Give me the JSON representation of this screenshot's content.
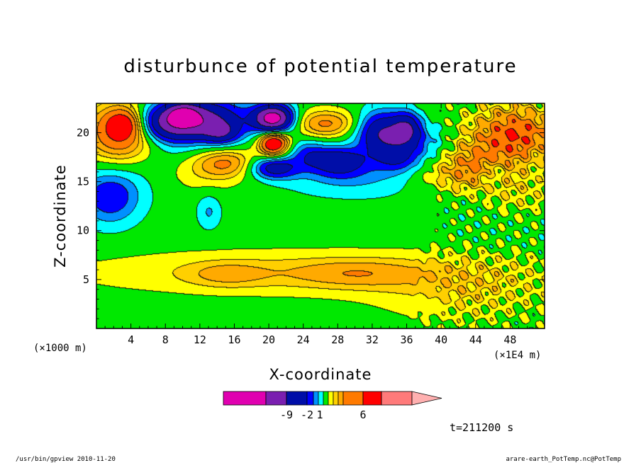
{
  "chart_data": {
    "type": "heatmap",
    "title": "disturbunce of potential temperature",
    "xlabel": "X-coordinate",
    "ylabel": "Z-coordinate",
    "x_unit_left": "(×1000 m)",
    "x_unit_right": "(×1E4 m)",
    "xlim": [
      0,
      52
    ],
    "ylim": [
      0,
      23
    ],
    "x_ticks": [
      4,
      8,
      12,
      16,
      20,
      24,
      28,
      32,
      36,
      40,
      44,
      48
    ],
    "x_tick_labels": [
      "4",
      "8",
      "12",
      "16",
      "20",
      "24",
      "28",
      "32",
      "36",
      "40",
      "44",
      "48"
    ],
    "y_ticks": [
      5,
      10,
      15,
      20
    ],
    "y_tick_labels": [
      "5",
      "10",
      "15",
      "20"
    ],
    "colorbar": {
      "colors": [
        "#e000b0",
        "#7a1fb0",
        "#000ea8",
        "#0000ff",
        "#0090ff",
        "#00ffff",
        "#00e800",
        "#ffff00",
        "#ffd000",
        "#ffaa00",
        "#ff7a00",
        "#ff0000",
        "#ff7a7a",
        "#ffb0b0"
      ],
      "tick_labels": [
        "-9",
        "-2",
        "1",
        "6"
      ]
    },
    "field": {
      "description_levels": "background value 0 (green); positive = warm colors, negative = cool colors",
      "blobs": [
        {
          "x": 24,
          "z": 5.8,
          "sx": 18,
          "sz": 1.6,
          "v": 1.6
        },
        {
          "x": 15,
          "z": 5.6,
          "sx": 3.2,
          "sz": 0.9,
          "v": 1.2
        },
        {
          "x": 30,
          "z": 5.7,
          "sx": 5,
          "sz": 1.0,
          "v": 1.2
        },
        {
          "x": 42,
          "z": 3.5,
          "sx": 7,
          "sz": 2.2,
          "v": 1.1
        },
        {
          "x": 3,
          "z": 20,
          "sx": 3,
          "sz": 2.2,
          "v": 5
        },
        {
          "x": 3.2,
          "z": 21,
          "sx": 1.4,
          "sz": 1.0,
          "v": 3
        },
        {
          "x": 8,
          "z": 21,
          "sx": 3,
          "sz": 1.3,
          "v": -4
        },
        {
          "x": 12,
          "z": 21.5,
          "sx": 4,
          "sz": 1.5,
          "v": -5
        },
        {
          "x": 14.5,
          "z": 20,
          "sx": 1.5,
          "sz": 0.8,
          "v": -3
        },
        {
          "x": 10,
          "z": 22,
          "sx": 1.2,
          "sz": 0.7,
          "v": -3
        },
        {
          "x": 20.5,
          "z": 21.5,
          "sx": 1.6,
          "sz": 1.0,
          "v": -8
        },
        {
          "x": 20.5,
          "z": 19,
          "sx": 1.2,
          "sz": 0.9,
          "v": 6
        },
        {
          "x": 20.5,
          "z": 16.5,
          "sx": 2.0,
          "sz": 0.8,
          "v": -4
        },
        {
          "x": 15,
          "z": 17,
          "sx": 2.5,
          "sz": 1.0,
          "v": 2.5
        },
        {
          "x": 12,
          "z": 16,
          "sx": 4,
          "sz": 1.5,
          "v": 1.2
        },
        {
          "x": 26.5,
          "z": 21,
          "sx": 2.6,
          "sz": 1.0,
          "v": 3
        },
        {
          "x": 24.5,
          "z": 18,
          "sx": 1.5,
          "sz": 1.0,
          "v": -2
        },
        {
          "x": 28,
          "z": 17.2,
          "sx": 2.2,
          "sz": 1.0,
          "v": -4
        },
        {
          "x": 33,
          "z": 20,
          "sx": 2.0,
          "sz": 1.6,
          "v": -5
        },
        {
          "x": 36,
          "z": 20.5,
          "sx": 1.2,
          "sz": 1.2,
          "v": -4
        },
        {
          "x": 35,
          "z": 17.5,
          "sx": 1.8,
          "sz": 1.0,
          "v": -2.5
        },
        {
          "x": 30,
          "z": 15.5,
          "sx": 6,
          "sz": 1.5,
          "v": -1.5
        },
        {
          "x": 1.5,
          "z": 13.5,
          "sx": 2.5,
          "sz": 2.0,
          "v": -3
        },
        {
          "x": 13,
          "z": 12,
          "sx": 1.0,
          "sz": 1.3,
          "v": -1.5
        },
        {
          "x": 6,
          "z": 18,
          "sx": 4,
          "sz": 2.5,
          "v": -1.2
        },
        {
          "x": 48.5,
          "z": 20,
          "sx": 3.5,
          "sz": 2.0,
          "v": 4
        },
        {
          "x": 44,
          "z": 17,
          "sx": 3.0,
          "sz": 1.5,
          "v": 2.2
        },
        {
          "x": 41,
          "z": 15.5,
          "sx": 3.5,
          "sz": 1.2,
          "v": 1.4
        },
        {
          "x": 46,
          "z": 16,
          "sx": 1.0,
          "sz": 0.9,
          "v": -1.5
        },
        {
          "x": 49,
          "z": 14,
          "sx": 3.0,
          "sz": 1.6,
          "v": 1.0
        },
        {
          "x": 38,
          "z": 19,
          "sx": 2.0,
          "sz": 1.2,
          "v": -1.5
        }
      ]
    }
  },
  "time_label": "t=211200 s",
  "footer_left": "/usr/bin/gpview  2010-11-20",
  "footer_right": "arare-earth_PotTemp.nc@PotTemp"
}
